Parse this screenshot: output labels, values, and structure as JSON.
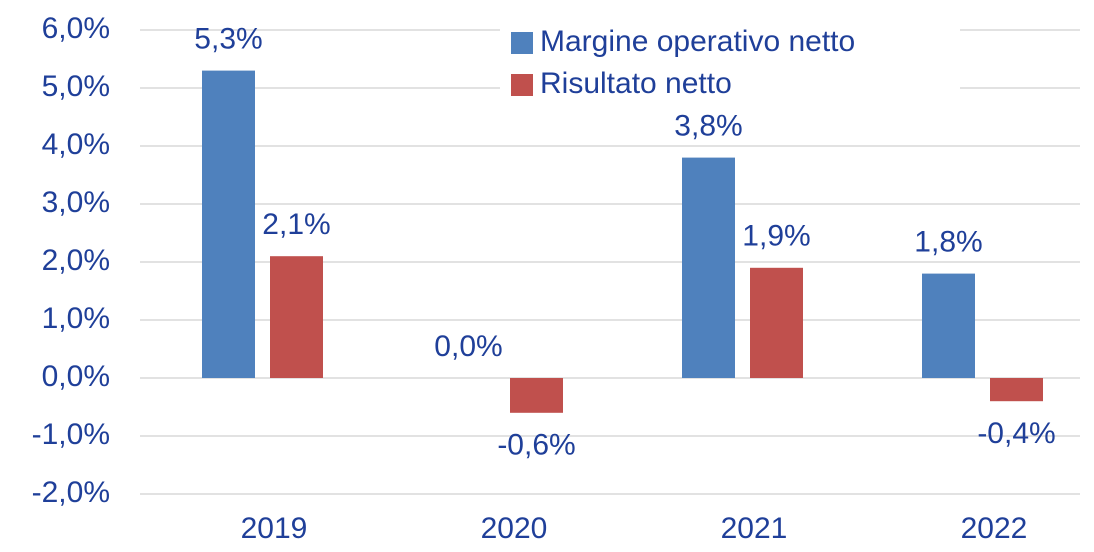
{
  "chart_data": {
    "type": "bar",
    "categories": [
      "2019",
      "2020",
      "2021",
      "2022"
    ],
    "series": [
      {
        "name": "Margine operativo netto",
        "color": "#4f81bd",
        "values": [
          5.3,
          0,
          3.8,
          1.8
        ],
        "value_labels": [
          "5,3%",
          "0,0%",
          "3,8%",
          "1,8%"
        ]
      },
      {
        "name": "Risultato netto",
        "color": "#c0504d",
        "values": [
          2.1,
          -0.6,
          1.9,
          -0.4
        ],
        "value_labels": [
          "2,1%",
          "-0,6%",
          "1,9%",
          "-0,4%"
        ]
      }
    ],
    "ylim": [
      -2,
      6
    ],
    "yticks": [
      {
        "value": -2,
        "label": "-2,0%"
      },
      {
        "value": -1,
        "label": "-1,0%"
      },
      {
        "value": 0,
        "label": "0,0%"
      },
      {
        "value": 1,
        "label": "1,0%"
      },
      {
        "value": 2,
        "label": "2,0%"
      },
      {
        "value": 3,
        "label": "3,0%"
      },
      {
        "value": 4,
        "label": "4,0%"
      },
      {
        "value": 5,
        "label": "5,0%"
      },
      {
        "value": 6,
        "label": "6,0%"
      }
    ],
    "grid": true,
    "legend": "top-right"
  }
}
